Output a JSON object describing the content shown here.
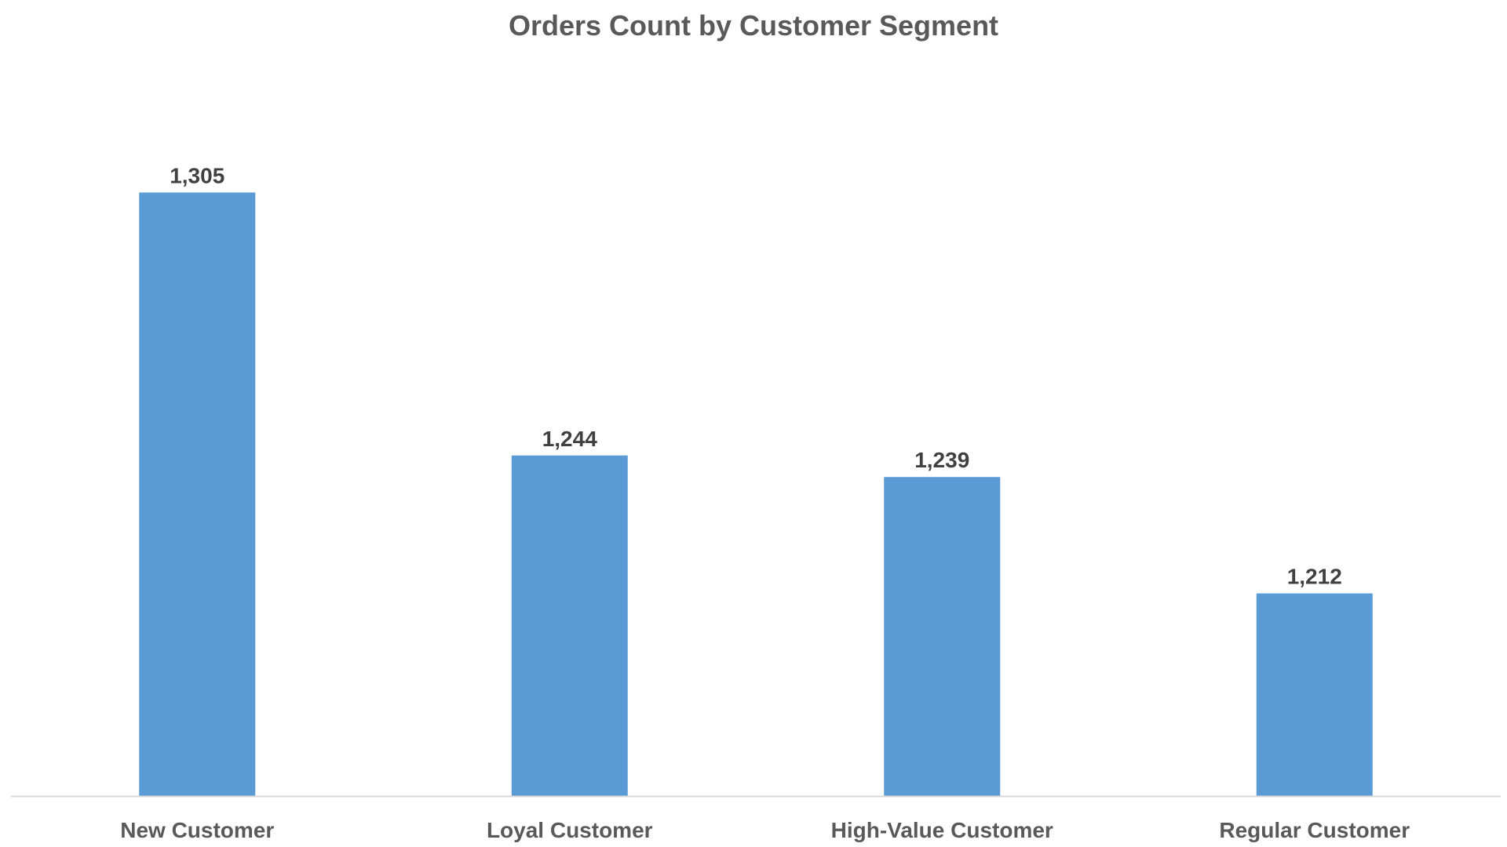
{
  "chart_data": {
    "type": "bar",
    "title": "Orders Count by Customer Segment",
    "categories": [
      "New Customer",
      "Loyal Customer",
      "High-Value Customer",
      "Regular Customer"
    ],
    "values": [
      1305,
      1244,
      1239,
      1212
    ],
    "data_labels": [
      "1,305",
      "1,244",
      "1,239",
      "1,212"
    ],
    "bar_color": "#5B9BD5",
    "axis_color": "#D9D9D9",
    "xlabel": "",
    "ylabel": "",
    "ylim": [
      1165,
      1320
    ],
    "grid": false,
    "legend": "none"
  }
}
